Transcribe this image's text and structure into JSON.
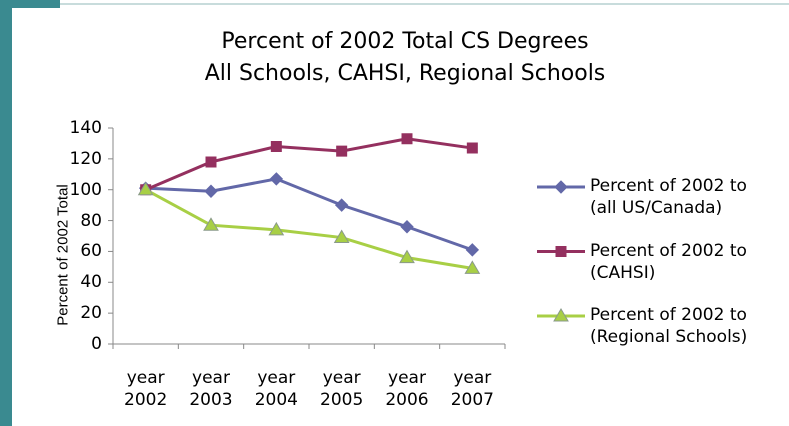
{
  "chart_data": {
    "type": "line",
    "title": "Percent of 2002 Total CS Degrees\nAll Schools, CAHSI, Regional Schools",
    "y_label": "Percent of 2002 Total",
    "categories": [
      "year 2002",
      "year 2003",
      "year 2004",
      "year 2005",
      "year 2006",
      "year 2007"
    ],
    "series": [
      {
        "name": "Percent of 2002 to\n(all US/Canada)",
        "color": "#6268a8",
        "marker": "diamond",
        "values": [
          101,
          99,
          107,
          90,
          76,
          61
        ]
      },
      {
        "name": "Percent of 2002 to\n(CAHSI)",
        "color": "#94305f",
        "marker": "square",
        "values": [
          100,
          118,
          128,
          125,
          133,
          127
        ]
      },
      {
        "name": "Percent of 2002 to\n(Regional Schools)",
        "color": "#a8cf45",
        "marker": "triangle",
        "values": [
          100,
          77,
          74,
          69,
          56,
          49
        ]
      }
    ],
    "ylim": [
      0,
      140
    ],
    "yticks": [
      0,
      20,
      40,
      60,
      80,
      100,
      120,
      140
    ],
    "grid": false,
    "legend": "right"
  }
}
